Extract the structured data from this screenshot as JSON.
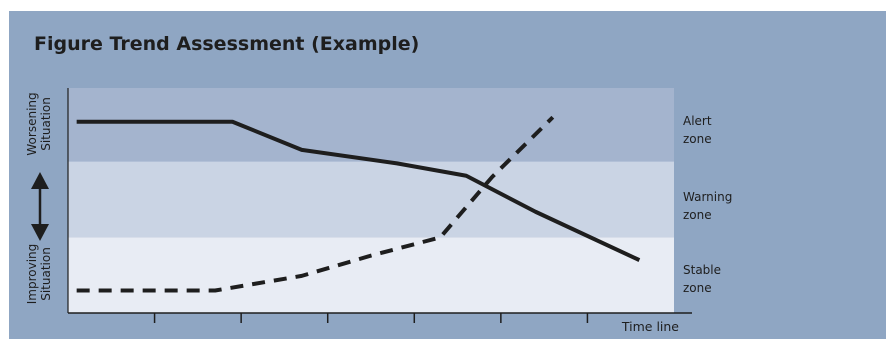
{
  "title": "Figure Trend Assessment (Example)",
  "chart_data": {
    "type": "line",
    "title": "Figure Trend Assessment (Example)",
    "xlabel": "Time line",
    "y_top_label": [
      "Worsening",
      "Situation"
    ],
    "y_bottom_label": [
      "Improving",
      "Situation"
    ],
    "xlim": [
      0,
      7
    ],
    "ylim": [
      0,
      100
    ],
    "x_ticks": [
      1,
      2,
      3,
      4,
      5,
      6
    ],
    "grid": false,
    "zones": [
      {
        "label": [
          "Alert",
          "zone"
        ],
        "range": [
          67.3,
          100
        ],
        "color": "#a4b4ce"
      },
      {
        "label": [
          "Warning",
          "zone"
        ],
        "range": [
          33.6,
          67.3
        ],
        "color": "#cad4e4"
      },
      {
        "label": [
          "Stable",
          "zone"
        ],
        "range": [
          0,
          33.6
        ],
        "color": "#e8ecf4"
      }
    ],
    "series": [
      {
        "style": "solid",
        "x": [
          0.1,
          1.9,
          2.7,
          3.8,
          4.6,
          5.4,
          6.6
        ],
        "y": [
          85,
          85,
          72.5,
          66.5,
          61,
          45,
          23.5
        ]
      },
      {
        "style": "dashed",
        "x": [
          0.1,
          1.7,
          2.7,
          3.5,
          4.3,
          4.9,
          5.6
        ],
        "y": [
          10,
          10,
          16.5,
          25.5,
          33.6,
          60.5,
          87
        ]
      }
    ]
  }
}
